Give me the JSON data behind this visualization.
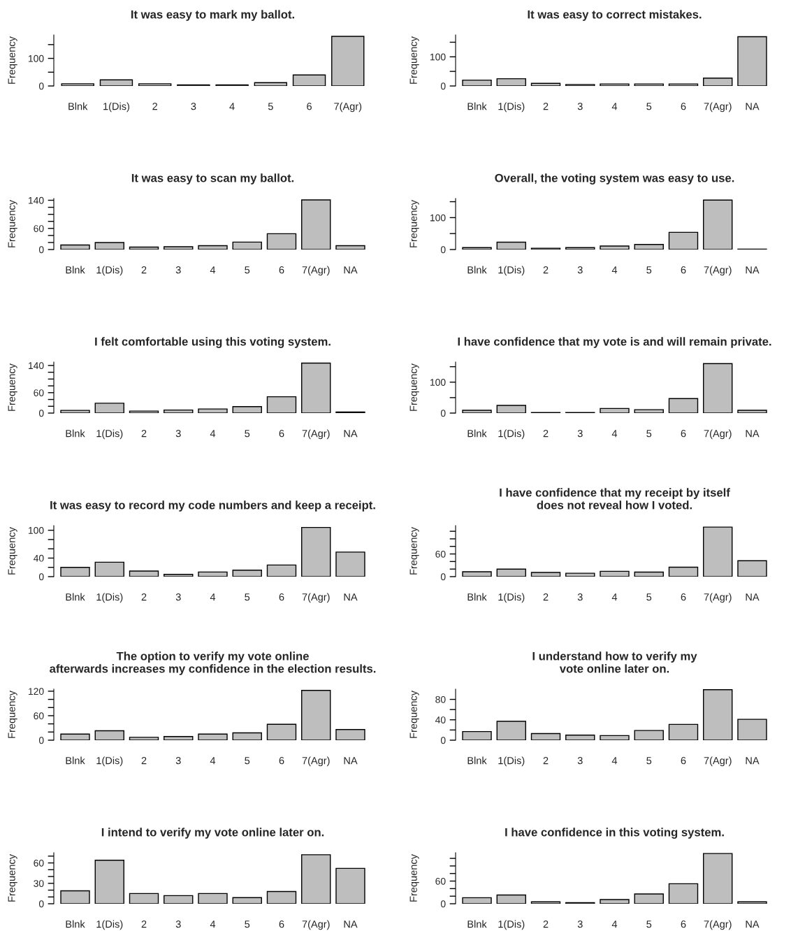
{
  "chart_data": [
    {
      "type": "bar",
      "title": "It was easy to mark my ballot.",
      "ylabel": "Frequency",
      "categories": [
        "Blnk",
        "1(Dis)",
        "2",
        "3",
        "4",
        "5",
        "6",
        "7(Agr)"
      ],
      "values": [
        8,
        22,
        8,
        4,
        4,
        12,
        40,
        180
      ],
      "color": "#bebebe",
      "ylim": [
        0,
        185
      ],
      "yticks": [
        0,
        {
          "value": 50,
          "label": null
        },
        100,
        {
          "value": 150,
          "label": null
        }
      ]
    },
    {
      "type": "bar",
      "title": "It was easy to correct mistakes.",
      "ylabel": "Frequency",
      "categories": [
        "Blnk",
        "1(Dis)",
        "2",
        "3",
        "4",
        "5",
        "6",
        "7(Agr)",
        "NA"
      ],
      "values": [
        20,
        25,
        9,
        5,
        7,
        7,
        7,
        27,
        169
      ],
      "color": "#bebebe",
      "ylim": [
        0,
        175
      ],
      "yticks": [
        0,
        {
          "value": 50,
          "label": null
        },
        100,
        {
          "value": 150,
          "label": null
        }
      ]
    },
    {
      "type": "bar",
      "title": "It was easy to scan my ballot.",
      "ylabel": "Frequency",
      "categories": [
        "Blnk",
        "1(Dis)",
        "2",
        "3",
        "4",
        "5",
        "6",
        "7(Agr)",
        "NA"
      ],
      "values": [
        13,
        20,
        7,
        8,
        11,
        21,
        45,
        141,
        11
      ],
      "color": "#bebebe",
      "ylim": [
        0,
        145
      ],
      "yticks": [
        0,
        {
          "value": 20,
          "label": null
        },
        {
          "value": 40,
          "label": null
        },
        60,
        {
          "value": 80,
          "label": null
        },
        {
          "value": 100,
          "label": null
        },
        {
          "value": 120,
          "label": null
        },
        140
      ]
    },
    {
      "type": "bar",
      "title": "Overall, the voting system was easy to use.",
      "ylabel": "Frequency",
      "categories": [
        "Blnk",
        "1(Dis)",
        "2",
        "3",
        "4",
        "5",
        "6",
        "7(Agr)",
        "NA"
      ],
      "values": [
        6,
        23,
        4,
        6,
        11,
        16,
        54,
        155,
        1
      ],
      "color": "#bebebe",
      "ylim": [
        0,
        160
      ],
      "yticks": [
        0,
        {
          "value": 50,
          "label": null
        },
        100,
        {
          "value": 150,
          "label": null
        }
      ]
    },
    {
      "type": "bar",
      "title": "I felt comfortable using this voting system.",
      "ylabel": "Frequency",
      "categories": [
        "Blnk",
        "1(Dis)",
        "2",
        "3",
        "4",
        "5",
        "6",
        "7(Agr)",
        "NA"
      ],
      "values": [
        8,
        29,
        6,
        9,
        12,
        19,
        48,
        147,
        3
      ],
      "color": "#bebebe",
      "ylim": [
        0,
        150
      ],
      "yticks": [
        0,
        {
          "value": 20,
          "label": null
        },
        {
          "value": 40,
          "label": null
        },
        60,
        {
          "value": 80,
          "label": null
        },
        {
          "value": 100,
          "label": null
        },
        {
          "value": 120,
          "label": null
        },
        140
      ]
    },
    {
      "type": "bar",
      "title": "I have confidence that my vote is and will remain private.",
      "ylabel": "Frequency",
      "categories": [
        "Blnk",
        "1(Dis)",
        "2",
        "3",
        "4",
        "5",
        "6",
        "7(Agr)",
        "NA"
      ],
      "values": [
        9,
        25,
        2,
        2,
        15,
        11,
        47,
        160,
        9
      ],
      "color": "#bebebe",
      "ylim": [
        0,
        165
      ],
      "yticks": [
        0,
        {
          "value": 50,
          "label": null
        },
        100,
        {
          "value": 150,
          "label": null
        }
      ]
    },
    {
      "type": "bar",
      "title": "It was easy to record my code numbers and keep a receipt.",
      "ylabel": "Frequency",
      "categories": [
        "Blnk",
        "1(Dis)",
        "2",
        "3",
        "4",
        "5",
        "6",
        "7(Agr)",
        "NA"
      ],
      "values": [
        20,
        31,
        12,
        5,
        10,
        14,
        25,
        106,
        53
      ],
      "color": "#bebebe",
      "ylim": [
        0,
        110
      ],
      "yticks": [
        0,
        {
          "value": 20,
          "label": null
        },
        40,
        {
          "value": 60,
          "label": null
        },
        {
          "value": 80,
          "label": null
        },
        100
      ]
    },
    {
      "type": "bar",
      "title": "I have confidence that my receipt by itself\ndoes not reveal how I voted.",
      "ylabel": "Frequency",
      "categories": [
        "Blnk",
        "1(Dis)",
        "2",
        "3",
        "4",
        "5",
        "6",
        "7(Agr)",
        "NA"
      ],
      "values": [
        13,
        20,
        11,
        9,
        14,
        12,
        25,
        131,
        42
      ],
      "color": "#bebebe",
      "ylim": [
        0,
        135
      ],
      "yticks": [
        0,
        {
          "value": 20,
          "label": null
        },
        {
          "value": 40,
          "label": null
        },
        60,
        {
          "value": 80,
          "label": null
        },
        {
          "value": 100,
          "label": null
        },
        {
          "value": 120,
          "label": null
        }
      ]
    },
    {
      "type": "bar",
      "title": "The option to verify my vote online\nafterwards increases my confidence in the election results.",
      "ylabel": "Frequency",
      "categories": [
        "Blnk",
        "1(Dis)",
        "2",
        "3",
        "4",
        "5",
        "6",
        "7(Agr)",
        "NA"
      ],
      "values": [
        15,
        23,
        7,
        9,
        15,
        18,
        39,
        122,
        26
      ],
      "color": "#bebebe",
      "ylim": [
        0,
        125
      ],
      "yticks": [
        0,
        {
          "value": 20,
          "label": null
        },
        {
          "value": 40,
          "label": null
        },
        60,
        {
          "value": 80,
          "label": null
        },
        {
          "value": 100,
          "label": null
        },
        120
      ]
    },
    {
      "type": "bar",
      "title": "I understand how to verify my\nvote online later on.",
      "ylabel": "Frequency",
      "categories": [
        "Blnk",
        "1(Dis)",
        "2",
        "3",
        "4",
        "5",
        "6",
        "7(Agr)",
        "NA"
      ],
      "values": [
        17,
        37,
        13,
        10,
        9,
        19,
        31,
        99,
        41
      ],
      "color": "#bebebe",
      "ylim": [
        0,
        100
      ],
      "yticks": [
        0,
        {
          "value": 20,
          "label": null
        },
        40,
        {
          "value": 60,
          "label": null
        },
        80
      ]
    },
    {
      "type": "bar",
      "title": "I intend to verify my vote online later on.",
      "ylabel": "Frequency",
      "categories": [
        "Blnk",
        "1(Dis)",
        "2",
        "3",
        "4",
        "5",
        "6",
        "7(Agr)",
        "NA"
      ],
      "values": [
        19,
        64,
        15,
        12,
        15,
        9,
        18,
        72,
        52
      ],
      "color": "#bebebe",
      "ylim": [
        0,
        75
      ],
      "yticks": [
        0,
        {
          "value": 10,
          "label": null
        },
        {
          "value": 20,
          "label": null
        },
        30,
        {
          "value": 40,
          "label": null
        },
        {
          "value": 50,
          "label": null
        },
        60,
        {
          "value": 70,
          "label": null
        }
      ]
    },
    {
      "type": "bar",
      "title": "I have confidence in this voting system.",
      "ylabel": "Frequency",
      "categories": [
        "Blnk",
        "1(Dis)",
        "2",
        "3",
        "4",
        "5",
        "6",
        "7(Agr)",
        "NA"
      ],
      "values": [
        16,
        23,
        5,
        3,
        11,
        26,
        53,
        133,
        5
      ],
      "color": "#bebebe",
      "ylim": [
        0,
        135
      ],
      "yticks": [
        0,
        {
          "value": 20,
          "label": null
        },
        {
          "value": 40,
          "label": null
        },
        60,
        {
          "value": 80,
          "label": null
        },
        {
          "value": 100,
          "label": null
        },
        {
          "value": 120,
          "label": null
        }
      ]
    }
  ]
}
